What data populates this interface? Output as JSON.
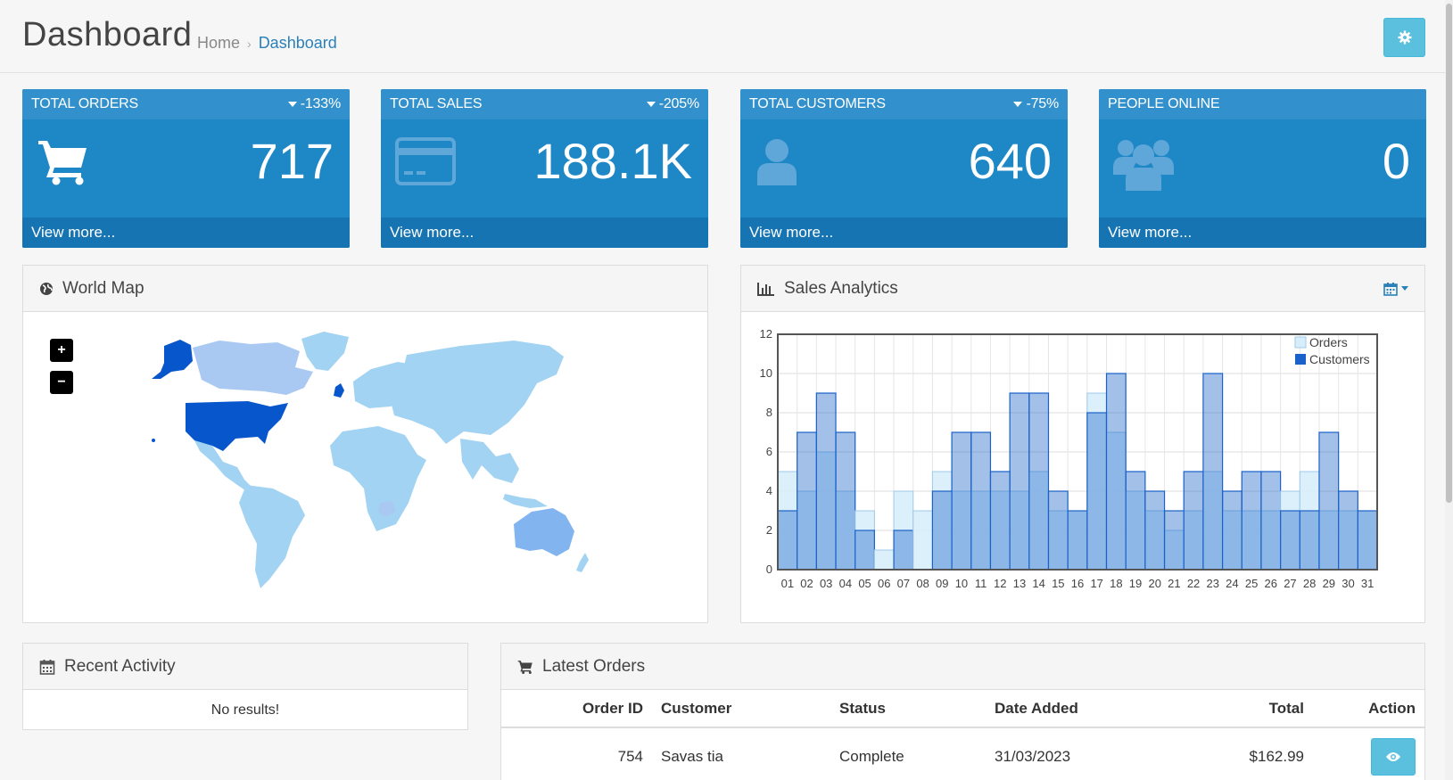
{
  "header": {
    "title": "Dashboard",
    "breadcrumb": [
      "Home",
      "Dashboard"
    ]
  },
  "tiles": [
    {
      "title": "TOTAL ORDERS",
      "change": "-133%",
      "value": "717",
      "more": "View more...",
      "icon": "shopping-cart-icon"
    },
    {
      "title": "TOTAL SALES",
      "change": "-205%",
      "value": "188.1K",
      "more": "View more...",
      "icon": "credit-card-icon"
    },
    {
      "title": "TOTAL CUSTOMERS",
      "change": "-75%",
      "value": "640",
      "more": "View more...",
      "icon": "user-icon"
    },
    {
      "title": "PEOPLE ONLINE",
      "change": "",
      "value": "0",
      "more": "View more...",
      "icon": "users-icon"
    }
  ],
  "world_map": {
    "title": "World Map",
    "zoom_in": "+",
    "zoom_out": "−"
  },
  "sales_analytics": {
    "title": "Sales Analytics"
  },
  "chart_data": {
    "type": "bar",
    "categories": [
      "01",
      "02",
      "03",
      "04",
      "05",
      "06",
      "07",
      "08",
      "09",
      "10",
      "11",
      "12",
      "13",
      "14",
      "15",
      "16",
      "17",
      "18",
      "19",
      "20",
      "21",
      "22",
      "23",
      "24",
      "25",
      "26",
      "27",
      "28",
      "29",
      "30",
      "31"
    ],
    "series": [
      {
        "name": "Orders",
        "values": [
          5,
          4,
          6,
          4,
          3,
          1,
          4,
          3,
          5,
          4,
          4,
          4,
          4,
          5,
          3,
          3,
          9,
          7,
          4,
          3,
          2,
          3,
          5,
          3,
          3,
          3,
          4,
          5,
          3,
          3,
          3
        ],
        "color": "#d7eefa"
      },
      {
        "name": "Customers",
        "values": [
          3,
          7,
          9,
          7,
          2,
          0,
          2,
          0,
          4,
          7,
          7,
          5,
          9,
          9,
          4,
          3,
          8,
          10,
          5,
          4,
          3,
          5,
          10,
          4,
          5,
          5,
          3,
          3,
          7,
          4,
          3
        ],
        "color": "#1a61c9"
      }
    ],
    "ylim": [
      0,
      12
    ],
    "yticks": [
      0,
      2,
      4,
      6,
      8,
      10,
      12
    ],
    "grid": true,
    "legend": "top-right"
  },
  "recent_activity": {
    "title": "Recent Activity",
    "empty": "No results!"
  },
  "latest_orders": {
    "title": "Latest Orders",
    "columns": [
      "Order ID",
      "Customer",
      "Status",
      "Date Added",
      "Total",
      "Action"
    ],
    "rows": [
      {
        "id": "754",
        "customer": "Savas tia",
        "status": "Complete",
        "date": "31/03/2023",
        "total": "$162.99"
      }
    ]
  },
  "colors": {
    "tile": "#1e88c7",
    "tile_head": "#3291cc",
    "tile_foot": "#1774b2",
    "info_button": "#5bc0de",
    "link": "#2a80b9"
  }
}
